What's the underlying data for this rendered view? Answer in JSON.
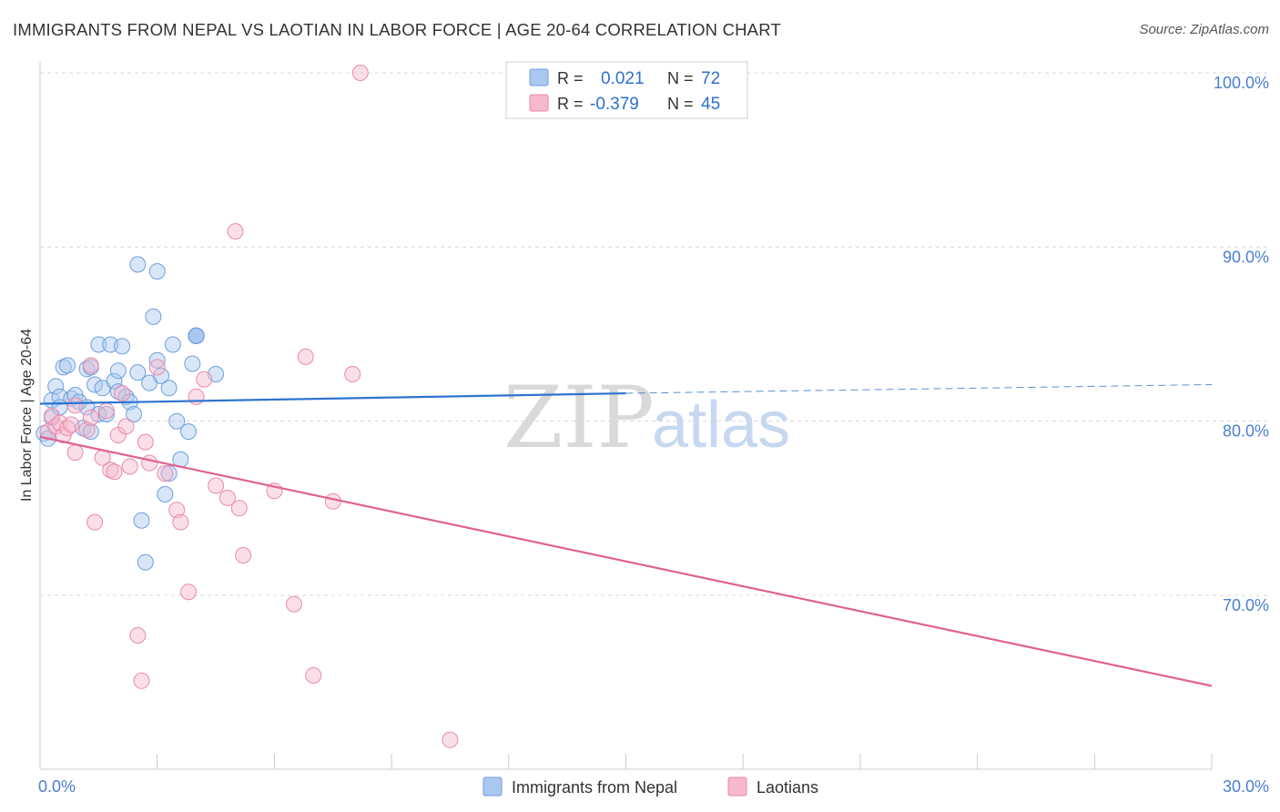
{
  "title": "IMMIGRANTS FROM NEPAL VS LAOTIAN IN LABOR FORCE | AGE 20-64 CORRELATION CHART",
  "source": "Source: ZipAtlas.com",
  "watermark": {
    "zip": "ZIP",
    "atlas": "atlas"
  },
  "colors": {
    "blue_fill": "#a9c7ef",
    "blue_stroke": "#6f9fdc",
    "blue_line": "#2f74cf",
    "pink_fill": "#f6b8cc",
    "pink_stroke": "#e98aab",
    "pink_line": "#e0628f",
    "tick_label": "#4a7fd0",
    "grid": "#d8d8d8"
  },
  "legend_top": {
    "rows": [
      {
        "r_label": "R =",
        "r_value": "0.021",
        "n_label": "N =",
        "n_value": "72"
      },
      {
        "r_label": "R =",
        "r_value": "-0.379",
        "n_label": "N =",
        "n_value": "45"
      }
    ]
  },
  "chart_data": {
    "type": "scatter",
    "title": "IMMIGRANTS FROM NEPAL VS LAOTIAN IN LABOR FORCE | AGE 20-64 CORRELATION CHART",
    "xlabel": "",
    "ylabel": "In Labor Force | Age 20-64",
    "xlim": [
      0,
      30
    ],
    "ylim": [
      60.5,
      101.5
    ],
    "x_tick_labels": [
      {
        "value": 0,
        "label": "0.0%"
      },
      {
        "value": 30,
        "label": "30.0%"
      }
    ],
    "y_tick_labels": [
      {
        "value": 100,
        "label": "100.0%"
      },
      {
        "value": 90,
        "label": "90.0%"
      },
      {
        "value": 80,
        "label": "80.0%"
      },
      {
        "value": 70,
        "label": "70.0%"
      }
    ],
    "grid": true,
    "legend_position": "bottom",
    "series": [
      {
        "name": "Immigrants from Nepal",
        "color": "#a9c7ef",
        "R": 0.021,
        "N": 72,
        "trend": {
          "x0": 0,
          "y0": 81.0,
          "x1": 15,
          "y1": 81.6,
          "dashed_to_x": 30,
          "dashed_to_y": 82.1
        },
        "points": [
          [
            0.1,
            79.3
          ],
          [
            0.2,
            79.0
          ],
          [
            0.3,
            80.2
          ],
          [
            0.3,
            81.2
          ],
          [
            0.4,
            82.0
          ],
          [
            0.5,
            81.4
          ],
          [
            0.5,
            80.8
          ],
          [
            0.6,
            83.1
          ],
          [
            0.7,
            83.2
          ],
          [
            0.8,
            81.3
          ],
          [
            0.9,
            81.5
          ],
          [
            1.0,
            81.1
          ],
          [
            1.1,
            79.6
          ],
          [
            1.2,
            83.0
          ],
          [
            1.2,
            80.8
          ],
          [
            1.3,
            83.1
          ],
          [
            1.3,
            79.4
          ],
          [
            1.4,
            82.1
          ],
          [
            1.5,
            84.4
          ],
          [
            1.5,
            80.4
          ],
          [
            1.6,
            81.9
          ],
          [
            1.7,
            80.4
          ],
          [
            1.8,
            84.4
          ],
          [
            1.9,
            82.3
          ],
          [
            2.0,
            82.9
          ],
          [
            2.0,
            81.7
          ],
          [
            2.1,
            84.3
          ],
          [
            2.2,
            81.4
          ],
          [
            2.3,
            81.1
          ],
          [
            2.4,
            80.4
          ],
          [
            2.5,
            89.0
          ],
          [
            2.5,
            82.8
          ],
          [
            2.6,
            74.3
          ],
          [
            2.7,
            71.9
          ],
          [
            2.8,
            82.2
          ],
          [
            2.9,
            86.0
          ],
          [
            3.0,
            83.5
          ],
          [
            3.1,
            82.6
          ],
          [
            3.2,
            75.8
          ],
          [
            3.3,
            81.9
          ],
          [
            3.3,
            77.0
          ],
          [
            3.4,
            84.4
          ],
          [
            3.5,
            80.0
          ],
          [
            3.6,
            77.8
          ],
          [
            3.8,
            79.4
          ],
          [
            3.9,
            83.3
          ],
          [
            4.0,
            84.9
          ],
          [
            3.0,
            88.6
          ],
          [
            4.5,
            82.7
          ],
          [
            4.0,
            84.9
          ],
          [
            4.0,
            84.9
          ],
          [
            4.0,
            84.9
          ],
          [
            4.0,
            84.9
          ],
          [
            4.0,
            84.9
          ],
          [
            4.0,
            84.9
          ],
          [
            4.0,
            84.9
          ],
          [
            4.0,
            84.9
          ],
          [
            4.0,
            84.9
          ],
          [
            4.0,
            84.9
          ],
          [
            4.0,
            84.9
          ],
          [
            4.0,
            84.9
          ],
          [
            4.0,
            84.9
          ],
          [
            4.0,
            84.9
          ],
          [
            4.0,
            84.9
          ],
          [
            4.0,
            84.9
          ],
          [
            4.0,
            84.9
          ],
          [
            4.0,
            84.9
          ],
          [
            4.0,
            84.9
          ],
          [
            4.0,
            84.9
          ],
          [
            4.0,
            84.9
          ],
          [
            4.0,
            84.9
          ],
          [
            4.0,
            84.9
          ]
        ]
      },
      {
        "name": "Laotians",
        "color": "#f6b8cc",
        "R": -0.379,
        "N": 45,
        "trend": {
          "x0": 0,
          "y0": 79.1,
          "x1": 30,
          "y1": 64.8
        },
        "points": [
          [
            0.2,
            79.4
          ],
          [
            0.3,
            80.3
          ],
          [
            0.4,
            79.7
          ],
          [
            0.5,
            79.9
          ],
          [
            0.6,
            79.2
          ],
          [
            0.7,
            79.6
          ],
          [
            0.8,
            79.8
          ],
          [
            0.9,
            80.9
          ],
          [
            0.9,
            78.2
          ],
          [
            1.2,
            79.5
          ],
          [
            1.3,
            83.2
          ],
          [
            1.3,
            80.2
          ],
          [
            1.4,
            74.2
          ],
          [
            1.6,
            77.9
          ],
          [
            1.7,
            80.6
          ],
          [
            1.8,
            77.2
          ],
          [
            1.9,
            77.1
          ],
          [
            2.0,
            79.2
          ],
          [
            2.1,
            81.6
          ],
          [
            2.2,
            79.7
          ],
          [
            2.3,
            77.4
          ],
          [
            2.5,
            67.7
          ],
          [
            2.6,
            65.1
          ],
          [
            2.7,
            78.8
          ],
          [
            2.8,
            77.6
          ],
          [
            3.0,
            83.1
          ],
          [
            3.2,
            77.0
          ],
          [
            3.5,
            74.9
          ],
          [
            3.6,
            74.2
          ],
          [
            3.8,
            70.2
          ],
          [
            4.0,
            81.4
          ],
          [
            4.2,
            82.4
          ],
          [
            4.5,
            76.3
          ],
          [
            4.8,
            75.6
          ],
          [
            5.0,
            90.9
          ],
          [
            5.1,
            75.0
          ],
          [
            5.2,
            72.3
          ],
          [
            6.0,
            76.0
          ],
          [
            6.5,
            69.5
          ],
          [
            6.8,
            83.7
          ],
          [
            7.0,
            65.4
          ],
          [
            7.5,
            75.4
          ],
          [
            8.0,
            82.7
          ],
          [
            8.2,
            100.0
          ],
          [
            10.5,
            61.7
          ]
        ]
      }
    ]
  },
  "legend_bottom": {
    "items": [
      "Immigrants from Nepal",
      "Laotians"
    ]
  }
}
